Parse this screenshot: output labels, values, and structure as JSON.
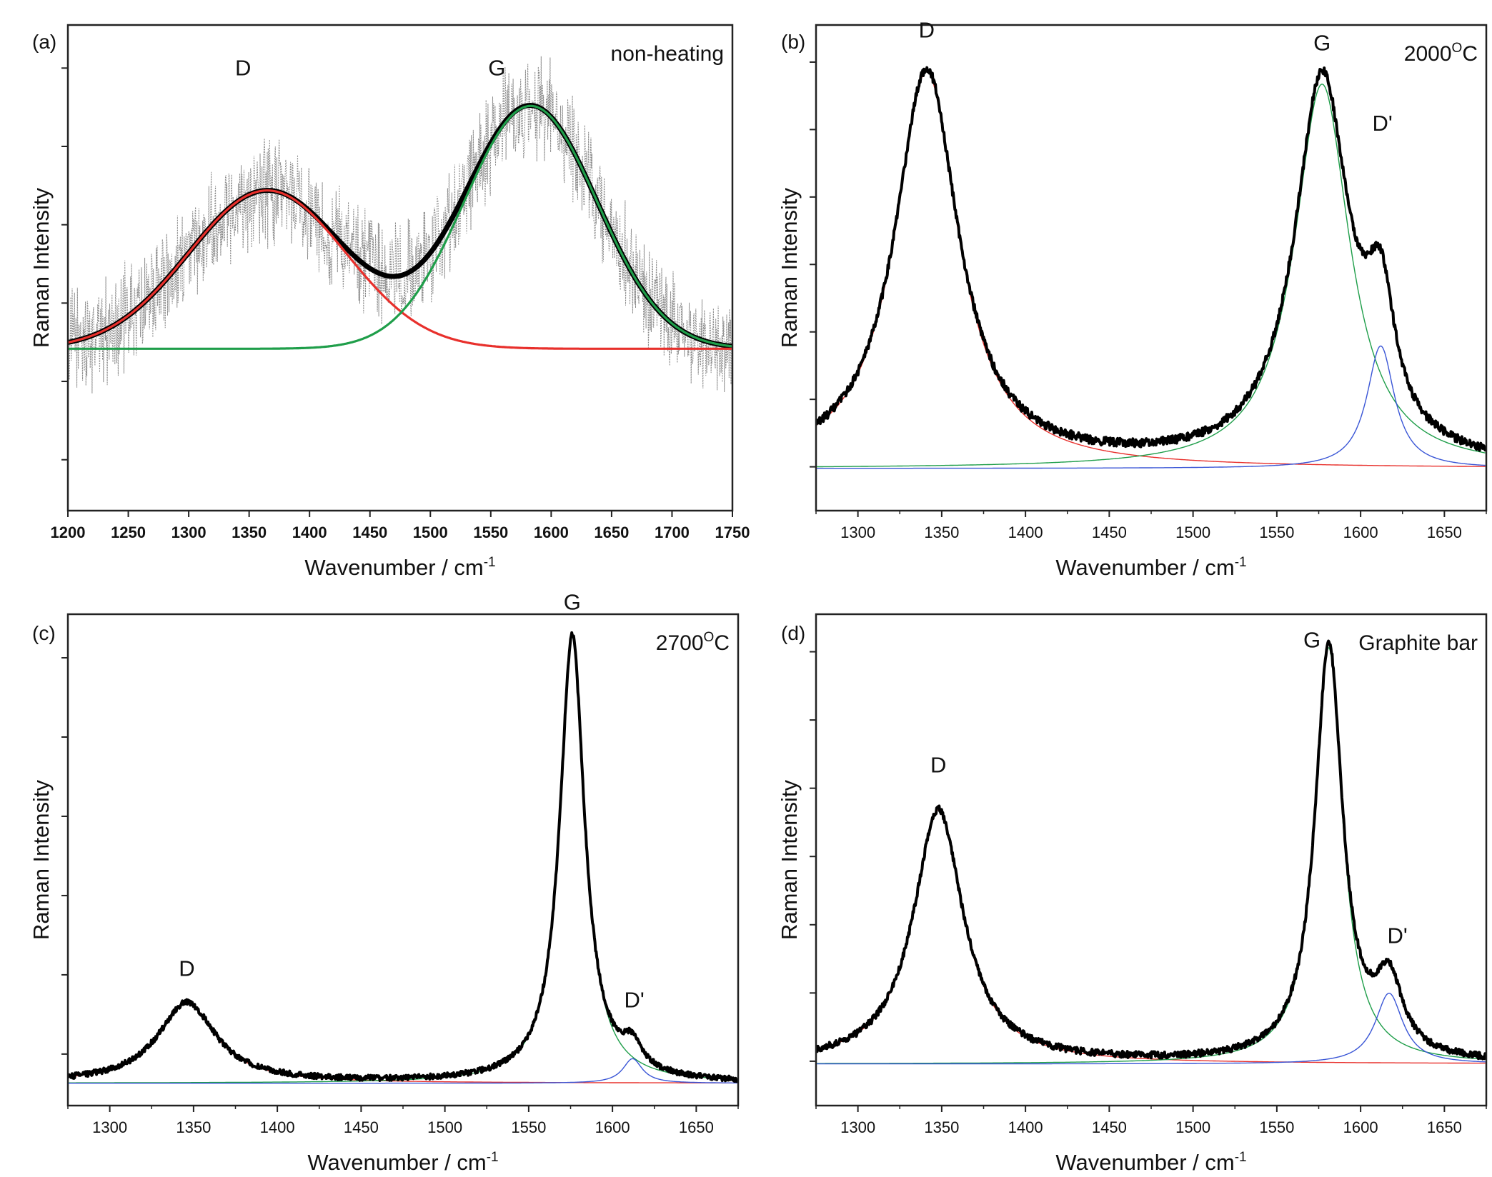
{
  "chart_data": [
    {
      "type": "line",
      "panel_label": "(a)",
      "annotation": "non-heating",
      "xlabel": "Wavenumber / cm",
      "xlabel_sup": "-1",
      "ylabel": "Raman Intensity",
      "xlim": [
        1200,
        1750
      ],
      "xticks": [
        "1200",
        "1250",
        "1300",
        "1350",
        "1400",
        "1450",
        "1500",
        "1550",
        "1600",
        "1650",
        "1700",
        "1750"
      ],
      "ylim": [
        -0.9,
        1.8
      ],
      "y_tick_count": 6,
      "noisy_raw_trace": true,
      "peaks": [
        {
          "label": "D",
          "center": 1365,
          "height": 0.88,
          "width": 65,
          "shape": "gauss",
          "color": "#e8302c",
          "label_x": 1345,
          "label_y": 1.52
        },
        {
          "label": "G",
          "center": 1583,
          "height": 1.35,
          "width": 55,
          "shape": "gauss",
          "color": "#1f9e4a",
          "label_x": 1555,
          "label_y": 1.52
        }
      ],
      "baseline": 0,
      "noise_level": 0.22
    },
    {
      "type": "line",
      "panel_label": "(b)",
      "annotation": "2000",
      "annotation_sup": "O",
      "annotation_suffix": "C",
      "xlabel": "Wavenumber / cm",
      "xlabel_sup": "-1",
      "ylabel": "Raman Intensity",
      "xlim": [
        1275,
        1675
      ],
      "xticks": [
        "1300",
        "1350",
        "1400",
        "1450",
        "1500",
        "1550",
        "1600",
        "1650"
      ],
      "ylim": [
        -0.1,
        1.05
      ],
      "y_tick_count": 7,
      "noisy_raw_trace": false,
      "peaks": [
        {
          "label": "D",
          "center": 1341,
          "height": 0.94,
          "width": 23,
          "shape": "lorentz",
          "color": "#e8302c",
          "label_x": 1341,
          "label_y": 1.02
        },
        {
          "label": "G",
          "center": 1577,
          "height": 0.91,
          "width": 20,
          "shape": "lorentz",
          "color": "#1f9e4a",
          "label_x": 1577,
          "label_y": 0.99
        },
        {
          "label": "D'",
          "center": 1612,
          "height": 0.29,
          "width": 10,
          "shape": "lorentz",
          "color": "#3a56d6",
          "label_x": 1613,
          "label_y": 0.8
        }
      ],
      "baseline": 0,
      "noise_level": 0.01
    },
    {
      "type": "line",
      "panel_label": "(c)",
      "annotation": "2700",
      "annotation_sup": "O",
      "annotation_suffix": "C",
      "xlabel": "Wavenumber / cm",
      "xlabel_sup": "-1",
      "ylabel": "Raman Intensity",
      "xlim": [
        1275,
        1675
      ],
      "xticks": [
        "1300",
        "1350",
        "1400",
        "1450",
        "1500",
        "1550",
        "1600",
        "1650"
      ],
      "ylim": [
        -0.05,
        1.05
      ],
      "y_tick_count": 6,
      "noisy_raw_trace": false,
      "peaks": [
        {
          "label": "D",
          "center": 1346,
          "height": 0.18,
          "width": 21,
          "shape": "lorentz",
          "color": "#e8302c",
          "label_x": 1346,
          "label_y": 0.24
        },
        {
          "label": "G",
          "center": 1576,
          "height": 1.0,
          "width": 9,
          "shape": "lorentz",
          "color": "#1f9e4a",
          "label_x": 1576,
          "label_y": 1.06
        },
        {
          "label": "D'",
          "center": 1612,
          "height": 0.055,
          "width": 7,
          "shape": "lorentz",
          "color": "#3a56d6",
          "label_x": 1613,
          "label_y": 0.17
        }
      ],
      "baseline": 0,
      "noise_level": 0.006
    },
    {
      "type": "line",
      "panel_label": "(d)",
      "annotation": "Graphite bar",
      "xlabel": "Wavenumber / cm",
      "xlabel_sup": "-1",
      "ylabel": "Raman Intensity",
      "xlim": [
        1275,
        1675
      ],
      "xticks": [
        "1300",
        "1350",
        "1400",
        "1450",
        "1500",
        "1550",
        "1600",
        "1650"
      ],
      "ylim": [
        -0.1,
        1.08
      ],
      "y_tick_count": 7,
      "noisy_raw_trace": false,
      "peaks": [
        {
          "label": "D",
          "center": 1348,
          "height": 0.61,
          "width": 18,
          "shape": "lorentz",
          "color": "#e8302c",
          "label_x": 1348,
          "label_y": 0.7
        },
        {
          "label": "G",
          "center": 1581,
          "height": 1.0,
          "width": 10,
          "shape": "lorentz",
          "color": "#1f9e4a",
          "label_x": 1571,
          "label_y": 1.0
        },
        {
          "label": "D'",
          "center": 1617,
          "height": 0.17,
          "width": 10,
          "shape": "lorentz",
          "color": "#3a56d6",
          "label_x": 1622,
          "label_y": 0.29
        }
      ],
      "baseline": 0,
      "noise_level": 0.008
    }
  ]
}
